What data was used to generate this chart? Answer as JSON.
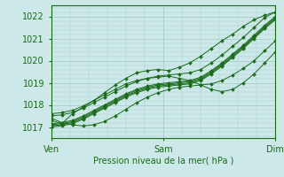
{
  "bg_color": "#cce8e8",
  "grid_color": "#aacccc",
  "line_color": "#1a6b1a",
  "marker_color": "#1a6b1a",
  "ylim": [
    1016.5,
    1022.5
  ],
  "yticks": [
    1017,
    1018,
    1019,
    1020,
    1021,
    1022
  ],
  "xtick_labels": [
    "Ven",
    "Sam",
    "Dim"
  ],
  "xtick_positions": [
    0.0,
    1.0,
    2.0
  ],
  "xlabel": "Pression niveau de la mer( hPa )",
  "series": [
    [
      1017.3,
      1017.15,
      1017.6,
      1017.9,
      1018.2,
      1018.55,
      1018.9,
      1019.2,
      1019.45,
      1019.55,
      1019.6,
      1019.55,
      1019.7,
      1019.9,
      1020.2,
      1020.55,
      1020.9,
      1021.2,
      1021.55,
      1021.85,
      1022.05,
      1022.2
    ],
    [
      1017.0,
      1017.05,
      1017.15,
      1017.35,
      1017.6,
      1017.85,
      1018.1,
      1018.35,
      1018.55,
      1018.7,
      1018.8,
      1018.85,
      1018.9,
      1018.95,
      1019.1,
      1019.4,
      1019.75,
      1020.15,
      1020.55,
      1021.0,
      1021.45,
      1021.85
    ],
    [
      1017.05,
      1017.1,
      1017.2,
      1017.4,
      1017.65,
      1017.9,
      1018.15,
      1018.4,
      1018.6,
      1018.75,
      1018.85,
      1018.9,
      1018.95,
      1019.0,
      1019.15,
      1019.45,
      1019.8,
      1020.2,
      1020.6,
      1021.05,
      1021.5,
      1021.9
    ],
    [
      1017.1,
      1017.15,
      1017.25,
      1017.45,
      1017.7,
      1017.95,
      1018.2,
      1018.45,
      1018.65,
      1018.8,
      1018.9,
      1018.95,
      1019.0,
      1019.05,
      1019.2,
      1019.5,
      1019.85,
      1020.25,
      1020.65,
      1021.1,
      1021.55,
      1021.95
    ],
    [
      1017.15,
      1017.2,
      1017.3,
      1017.5,
      1017.75,
      1018.0,
      1018.25,
      1018.5,
      1018.7,
      1018.85,
      1018.95,
      1019.0,
      1019.05,
      1019.1,
      1019.25,
      1019.55,
      1019.9,
      1020.3,
      1020.7,
      1021.15,
      1021.6,
      1022.0
    ],
    [
      1017.5,
      1017.55,
      1017.65,
      1017.85,
      1018.1,
      1018.35,
      1018.6,
      1018.85,
      1019.05,
      1019.2,
      1019.3,
      1019.35,
      1019.4,
      1019.45,
      1019.6,
      1019.9,
      1020.25,
      1020.65,
      1021.05,
      1021.5,
      1021.95,
      1022.2
    ],
    [
      1017.4,
      1017.2,
      1017.1,
      1017.05,
      1017.1,
      1017.25,
      1017.5,
      1017.8,
      1018.1,
      1018.35,
      1018.55,
      1018.7,
      1018.8,
      1018.85,
      1018.9,
      1018.95,
      1019.1,
      1019.35,
      1019.65,
      1020.0,
      1020.45,
      1020.9
    ],
    [
      1017.6,
      1017.65,
      1017.75,
      1017.95,
      1018.2,
      1018.45,
      1018.7,
      1018.95,
      1019.1,
      1019.2,
      1019.25,
      1019.3,
      1019.2,
      1019.1,
      1018.9,
      1018.7,
      1018.6,
      1018.7,
      1019.0,
      1019.4,
      1019.9,
      1020.4
    ]
  ]
}
